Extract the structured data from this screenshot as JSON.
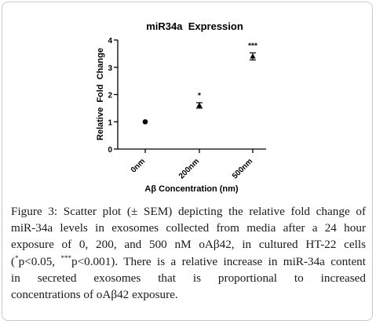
{
  "chart_data": {
    "type": "scatter",
    "title": "miR34a  Expression",
    "ylabel": "Relative  Fold  Change",
    "xlabel": "Aβ Concentration (nm)",
    "categories": [
      "0nm",
      "200nm",
      "500nm"
    ],
    "values": [
      1.0,
      1.6,
      3.4
    ],
    "sem": [
      0.0,
      0.1,
      0.13
    ],
    "markers": [
      "circle",
      "triangle",
      "triangle"
    ],
    "significance": [
      "",
      "*",
      "***"
    ],
    "ylim": [
      0,
      4
    ],
    "yticks": [
      "0",
      "1",
      "2",
      "3",
      "4"
    ],
    "grid": false,
    "legend": "none"
  },
  "caption": {
    "label": "Figure 3:",
    "line1_rest": " Scatter plot (± SEM) depicting the relative fold change of",
    "line2": "miR-34a levels in exosomes collected from media after a 24 hour",
    "line3": "exposure of 0, 200, and 500 nM oAβ42, in cultured HT-22 cells",
    "line4_open": "(",
    "line4_star1": "*",
    "line4_mid": "p<0.05, ",
    "line4_star3": "***",
    "line4_rest": "p<0.001). There is a relative increase in miR-34a content",
    "line5": "in secreted exosomes that is proportional to increased",
    "line6": "concentrations of oAβ42 exposure."
  }
}
